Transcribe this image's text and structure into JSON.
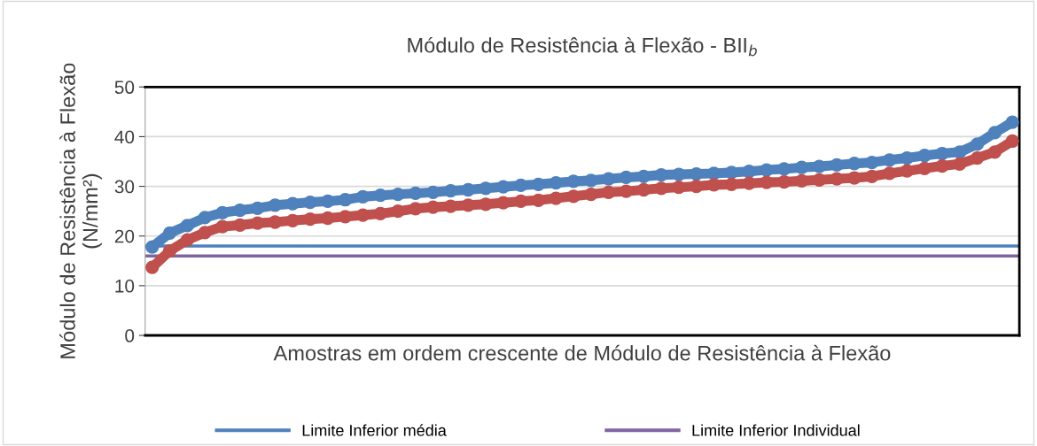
{
  "chart_data": {
    "type": "line",
    "title": "Módulo de Resistência à Flexão - BII$_{b}$",
    "xlabel": "Amostras em ordem crescente de Módulo de Resistência à Flexão",
    "ylabel": "Módulo de Resistência à Flexão\n(N/mm²)",
    "categories": [
      null,
      null,
      null,
      null,
      null,
      null,
      null,
      null,
      null,
      null,
      null,
      null,
      null,
      null,
      null,
      null,
      null,
      null,
      null,
      null,
      null,
      null,
      null,
      null,
      null,
      null,
      null,
      null,
      null,
      null,
      null,
      null,
      null,
      null,
      null,
      null,
      null,
      null,
      null,
      null,
      null,
      null,
      null,
      null,
      null,
      null,
      null,
      null,
      null,
      null
    ],
    "series": [
      {
        "color": "#4f81bd",
        "values": [
          17.8,
          20.6,
          22.1,
          23.7,
          24.7,
          25.2,
          25.6,
          26.2,
          26.5,
          26.8,
          27.0,
          27.3,
          27.9,
          28.2,
          28.4,
          28.6,
          28.8,
          29.1,
          29.3,
          29.6,
          29.9,
          30.2,
          30.4,
          30.7,
          31.0,
          31.2,
          31.5,
          31.8,
          32.0,
          32.3,
          32.4,
          32.5,
          32.6,
          32.8,
          33.0,
          33.3,
          33.5,
          33.8,
          34.0,
          34.3,
          34.6,
          34.8,
          35.3,
          35.7,
          36.2,
          36.6,
          36.9,
          38.5,
          40.8,
          42.9
        ]
      },
      {
        "color": "#c0504d",
        "values": [
          13.7,
          17.0,
          19.2,
          20.7,
          21.9,
          22.2,
          22.6,
          22.8,
          23.1,
          23.4,
          23.6,
          23.9,
          24.2,
          24.5,
          25.0,
          25.5,
          25.8,
          26.0,
          26.2,
          26.4,
          26.7,
          27.0,
          27.2,
          27.6,
          28.0,
          28.4,
          28.8,
          29.0,
          29.3,
          29.6,
          29.8,
          30.0,
          30.3,
          30.4,
          30.6,
          30.8,
          30.9,
          31.1,
          31.3,
          31.5,
          31.7,
          32.0,
          32.6,
          33.1,
          33.6,
          34.1,
          34.5,
          35.7,
          36.9,
          39.1
        ]
      }
    ],
    "ylim": [
      0,
      50
    ],
    "yticks": [
      0,
      10,
      20,
      30,
      40,
      50
    ],
    "tick_labels": "y",
    "grid": "y",
    "marker": "circle",
    "line_style": "solid",
    "legend": "bottom",
    "ref_lines": [
      {
        "axis": "y",
        "value": 18,
        "label": "Limite Inferior média",
        "color": "#4f81bd"
      },
      {
        "axis": "y",
        "value": 16,
        "label": "Limite Inferior Individual",
        "color": "#8064a2"
      }
    ]
  }
}
